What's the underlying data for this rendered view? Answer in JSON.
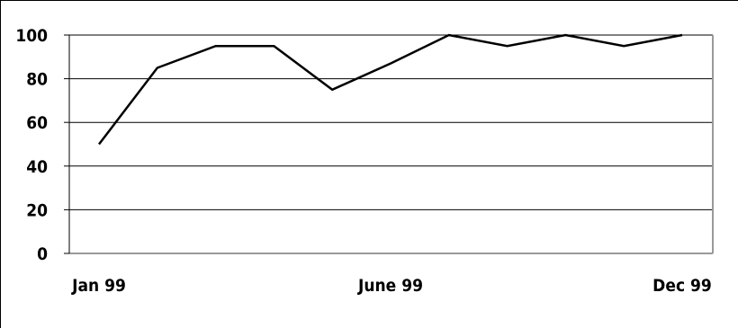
{
  "chart_data": {
    "type": "line",
    "title": "",
    "xlabel": "",
    "ylabel": "",
    "ylim": [
      0,
      100
    ],
    "yticks": [
      0,
      20,
      40,
      60,
      80,
      100
    ],
    "x_tick_labels": [
      {
        "label": "Jan 99",
        "index": 0
      },
      {
        "label": "June 99",
        "index": 5
      },
      {
        "label": "Dec 99",
        "index": 10
      }
    ],
    "grid": true,
    "series": [
      {
        "values": [
          50,
          85,
          95,
          95,
          75,
          87,
          100,
          95,
          100,
          95,
          100
        ],
        "color": "#000000"
      }
    ]
  }
}
